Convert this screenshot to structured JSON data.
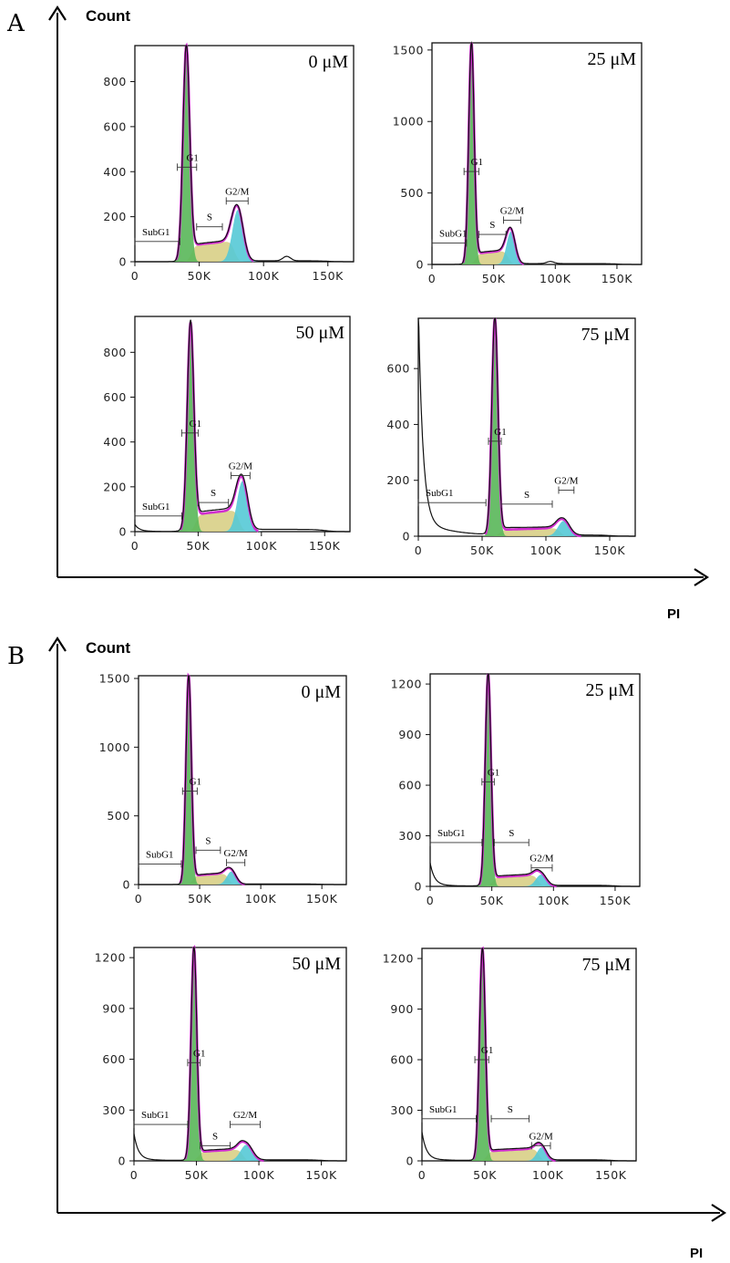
{
  "figure": {
    "panel_a_letter": "A",
    "panel_b_letter": "B",
    "y_axis_label": "Count",
    "x_axis_label": "PI"
  },
  "gate_labels": {
    "subg1": "SubG1",
    "g1": "G1",
    "s": "S",
    "g2m": "G2/M"
  },
  "colors": {
    "envelope": "#d12ed1",
    "g1_fill": "#5cb85c",
    "s_fill": "#d8cf86",
    "g2m_fill": "#55c9d6",
    "data_line": "#111111"
  },
  "chart_data": [
    {
      "id": "A-0",
      "panel": "A",
      "type": "area",
      "concentration": "0 μM",
      "xlim": [
        0,
        170000
      ],
      "ylim": [
        0,
        960
      ],
      "x_ticks": [
        0,
        50000,
        100000,
        150000
      ],
      "x_tick_labels": [
        "0",
        "50K",
        "100K",
        "150K"
      ],
      "y_ticks": [
        0,
        200,
        400,
        600,
        800
      ],
      "y_tick_labels": [
        "0",
        "200",
        "400",
        "600",
        "800"
      ],
      "g1_peak": {
        "x": 40000,
        "y": 960,
        "width": 2600
      },
      "g2m_peak": {
        "x": 80000,
        "y": 230,
        "width": 4200
      },
      "s_level": 95,
      "baseline": 4,
      "debris": 0,
      "extra_peaks": [
        {
          "x": 118000,
          "y": 20,
          "width": 3000
        }
      ],
      "gates": [
        {
          "name": "SubG1",
          "start": 0,
          "end": 35000,
          "y": 90
        },
        {
          "name": "G1",
          "start": 33000,
          "end": 48000,
          "y": 420
        },
        {
          "name": "S",
          "start": 48000,
          "end": 68000,
          "y": 155
        },
        {
          "name": "G2/M",
          "start": 71000,
          "end": 88000,
          "y": 270
        }
      ]
    },
    {
      "id": "A-25",
      "panel": "A",
      "type": "area",
      "concentration": "25 μM",
      "xlim": [
        0,
        170000
      ],
      "ylim": [
        0,
        1550
      ],
      "x_ticks": [
        0,
        50000,
        100000,
        150000
      ],
      "x_tick_labels": [
        "0",
        "50K",
        "100K",
        "150K"
      ],
      "y_ticks": [
        0,
        500,
        1000,
        1500
      ],
      "y_tick_labels": [
        "0",
        "500",
        "1000",
        "1500"
      ],
      "g1_peak": {
        "x": 32000,
        "y": 1550,
        "width": 2200
      },
      "g2m_peak": {
        "x": 64000,
        "y": 230,
        "width": 3500
      },
      "s_level": 100,
      "baseline": 6,
      "debris": 0,
      "extra_peaks": [
        {
          "x": 96000,
          "y": 15,
          "width": 3000
        }
      ],
      "gates": [
        {
          "name": "SubG1",
          "start": 0,
          "end": 28000,
          "y": 150
        },
        {
          "name": "G1",
          "start": 26000,
          "end": 38000,
          "y": 650
        },
        {
          "name": "S",
          "start": 38000,
          "end": 60000,
          "y": 210
        },
        {
          "name": "G2/M",
          "start": 58000,
          "end": 72000,
          "y": 310
        }
      ]
    },
    {
      "id": "A-50",
      "panel": "A",
      "type": "area",
      "concentration": "50 μM",
      "xlim": [
        0,
        170000
      ],
      "ylim": [
        0,
        960
      ],
      "x_ticks": [
        0,
        50000,
        100000,
        150000
      ],
      "x_tick_labels": [
        "0",
        "50K",
        "100K",
        "150K"
      ],
      "y_ticks": [
        0,
        200,
        400,
        600,
        800
      ],
      "y_tick_labels": [
        "0",
        "200",
        "400",
        "600",
        "800"
      ],
      "g1_peak": {
        "x": 44000,
        "y": 930,
        "width": 2600
      },
      "g2m_peak": {
        "x": 85000,
        "y": 225,
        "width": 4200
      },
      "s_level": 100,
      "baseline": 10,
      "debris": 30,
      "extra_peaks": [],
      "gates": [
        {
          "name": "SubG1",
          "start": 0,
          "end": 37000,
          "y": 70
        },
        {
          "name": "G1",
          "start": 37000,
          "end": 50000,
          "y": 440
        },
        {
          "name": "S",
          "start": 50000,
          "end": 74000,
          "y": 130
        },
        {
          "name": "G2/M",
          "start": 76000,
          "end": 91000,
          "y": 250
        }
      ]
    },
    {
      "id": "A-75",
      "panel": "A",
      "type": "area",
      "concentration": "75 μM",
      "xlim": [
        0,
        170000
      ],
      "ylim": [
        0,
        780
      ],
      "x_ticks": [
        0,
        50000,
        100000,
        150000
      ],
      "x_tick_labels": [
        "0",
        "50K",
        "100K",
        "150K"
      ],
      "y_ticks": [
        0,
        200,
        400,
        600
      ],
      "y_tick_labels": [
        "0",
        "200",
        "400",
        "600"
      ],
      "g1_peak": {
        "x": 60000,
        "y": 780,
        "width": 2400
      },
      "g2m_peak": {
        "x": 114000,
        "y": 55,
        "width": 4500
      },
      "s_level": 30,
      "baseline": 4,
      "debris": 780,
      "extra_peaks": [],
      "gates": [
        {
          "name": "SubG1",
          "start": 0,
          "end": 53000,
          "y": 120
        },
        {
          "name": "G1",
          "start": 55000,
          "end": 65000,
          "y": 340
        },
        {
          "name": "S",
          "start": 65000,
          "end": 105000,
          "y": 115
        },
        {
          "name": "G2/M",
          "start": 110000,
          "end": 122000,
          "y": 165
        }
      ]
    },
    {
      "id": "B-0",
      "panel": "B",
      "type": "area",
      "concentration": "0 μM",
      "xlim": [
        0,
        170000
      ],
      "ylim": [
        0,
        1520
      ],
      "x_ticks": [
        0,
        50000,
        100000,
        150000
      ],
      "x_tick_labels": [
        "0",
        "50K",
        "100K",
        "150K"
      ],
      "y_ticks": [
        0,
        500,
        1000,
        1500
      ],
      "y_tick_labels": [
        "0",
        "500",
        "1000",
        "1500"
      ],
      "g1_peak": {
        "x": 41000,
        "y": 1520,
        "width": 2200
      },
      "g2m_peak": {
        "x": 76000,
        "y": 95,
        "width": 3800
      },
      "s_level": 85,
      "baseline": 4,
      "debris": 0,
      "extra_peaks": [],
      "gates": [
        {
          "name": "SubG1",
          "start": 0,
          "end": 35000,
          "y": 150
        },
        {
          "name": "G1",
          "start": 36000,
          "end": 48000,
          "y": 680
        },
        {
          "name": "S",
          "start": 47000,
          "end": 67000,
          "y": 250
        },
        {
          "name": "G2/M",
          "start": 72000,
          "end": 87000,
          "y": 160
        }
      ]
    },
    {
      "id": "B-25",
      "panel": "B",
      "type": "area",
      "concentration": "25 μM",
      "xlim": [
        0,
        170000
      ],
      "ylim": [
        0,
        1260
      ],
      "x_ticks": [
        0,
        50000,
        100000,
        150000
      ],
      "x_tick_labels": [
        "0",
        "50K",
        "100K",
        "150K"
      ],
      "y_ticks": [
        0,
        300,
        600,
        900,
        1200
      ],
      "y_tick_labels": [
        "0",
        "300",
        "600",
        "900",
        "1200"
      ],
      "g1_peak": {
        "x": 47000,
        "y": 1260,
        "width": 2300
      },
      "g2m_peak": {
        "x": 90000,
        "y": 70,
        "width": 4200
      },
      "s_level": 70,
      "baseline": 6,
      "debris": 130,
      "extra_peaks": [],
      "gates": [
        {
          "name": "SubG1",
          "start": 0,
          "end": 42000,
          "y": 260
        },
        {
          "name": "G1",
          "start": 42000,
          "end": 52000,
          "y": 620
        },
        {
          "name": "S",
          "start": 52000,
          "end": 80000,
          "y": 260
        },
        {
          "name": "G2/M",
          "start": 82000,
          "end": 99000,
          "y": 110
        }
      ]
    },
    {
      "id": "B-50",
      "panel": "B",
      "type": "area",
      "concentration": "50 μM",
      "xlim": [
        0,
        170000
      ],
      "ylim": [
        0,
        1260
      ],
      "x_ticks": [
        0,
        50000,
        100000,
        150000
      ],
      "x_tick_labels": [
        "0",
        "50K",
        "100K",
        "150K"
      ],
      "y_ticks": [
        0,
        300,
        600,
        900,
        1200
      ],
      "y_tick_labels": [
        "0",
        "300",
        "600",
        "900",
        "1200"
      ],
      "g1_peak": {
        "x": 48000,
        "y": 1260,
        "width": 2300
      },
      "g2m_peak": {
        "x": 90000,
        "y": 95,
        "width": 4800
      },
      "s_level": 70,
      "baseline": 6,
      "debris": 150,
      "extra_peaks": [],
      "gates": [
        {
          "name": "SubG1",
          "start": 0,
          "end": 43000,
          "y": 215
        },
        {
          "name": "G1",
          "start": 43000,
          "end": 53000,
          "y": 580
        },
        {
          "name": "S",
          "start": 53000,
          "end": 77000,
          "y": 90
        },
        {
          "name": "G2/M",
          "start": 77000,
          "end": 101000,
          "y": 215
        }
      ]
    },
    {
      "id": "B-75",
      "panel": "B",
      "type": "area",
      "concentration": "75 μM",
      "xlim": [
        0,
        170000
      ],
      "ylim": [
        0,
        1260
      ],
      "x_ticks": [
        0,
        50000,
        100000,
        150000
      ],
      "x_tick_labels": [
        "0",
        "50K",
        "100K",
        "150K"
      ],
      "y_ticks": [
        0,
        300,
        600,
        900,
        1200
      ],
      "y_tick_labels": [
        "0",
        "300",
        "600",
        "900",
        "1200"
      ],
      "g1_peak": {
        "x": 48000,
        "y": 1260,
        "width": 2300
      },
      "g2m_peak": {
        "x": 95000,
        "y": 80,
        "width": 3800
      },
      "s_level": 75,
      "baseline": 6,
      "debris": 160,
      "extra_peaks": [],
      "gates": [
        {
          "name": "SubG1",
          "start": 0,
          "end": 43000,
          "y": 250
        },
        {
          "name": "G1",
          "start": 42000,
          "end": 53000,
          "y": 600
        },
        {
          "name": "S",
          "start": 55000,
          "end": 85000,
          "y": 250
        },
        {
          "name": "G2/M",
          "start": 87000,
          "end": 102000,
          "y": 90
        }
      ]
    }
  ]
}
